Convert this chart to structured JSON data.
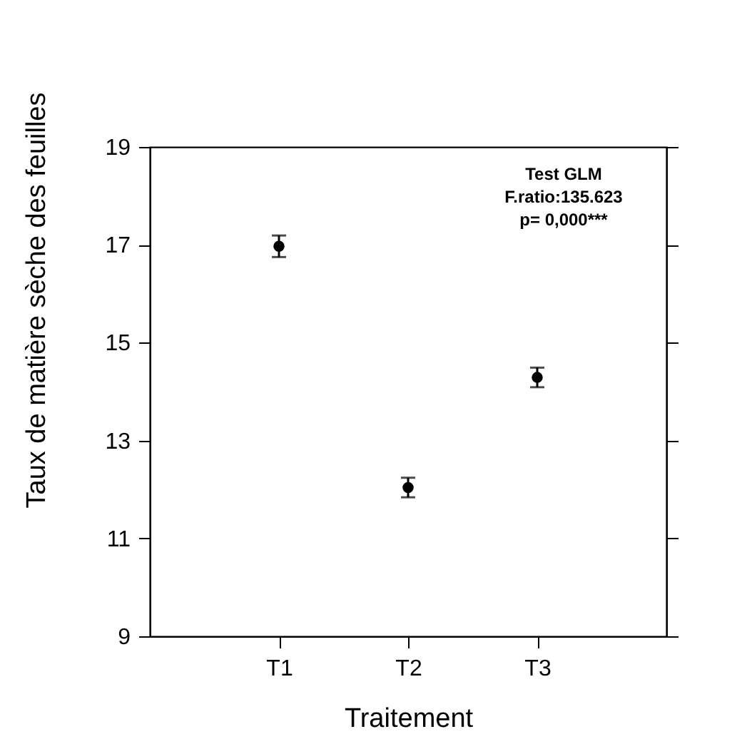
{
  "chart_data": {
    "type": "scatter",
    "xlabel": "Traitement",
    "ylabel": "Taux de matière sèche des feuilles",
    "categories": [
      "T1",
      "T2",
      "T3"
    ],
    "series": [
      {
        "color": "#000000",
        "values": [
          16.97,
          12.04,
          14.29
        ],
        "errors": [
          0.22,
          0.2,
          0.2
        ]
      }
    ],
    "ylim": [
      9,
      19
    ],
    "yticks": [
      9,
      11,
      13,
      15,
      17,
      19
    ],
    "grid": false,
    "legend": false,
    "marker": "circle",
    "annotations": [
      "Test GLM",
      "F.ratio:135.623",
      "p= 0,000***"
    ]
  }
}
